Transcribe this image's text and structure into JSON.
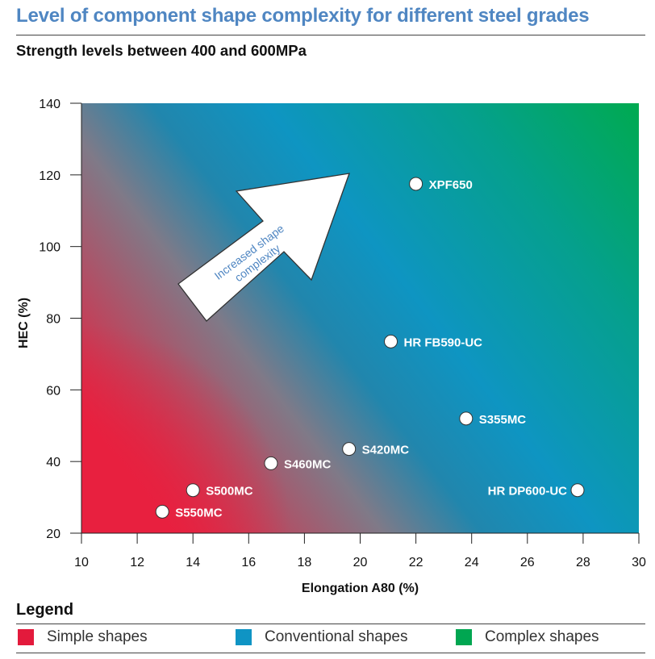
{
  "title": "Level of component shape complexity for different steel grades",
  "subtitle": "Strength levels between 400 and 600MPa",
  "chart_data": {
    "type": "scatter",
    "xlabel": "Elongation A80 (%)",
    "ylabel": "HEC (%)",
    "xlim": [
      10,
      30
    ],
    "ylim": [
      20,
      140
    ],
    "xticks": [
      10,
      12,
      14,
      16,
      18,
      20,
      22,
      24,
      26,
      28,
      30
    ],
    "yticks": [
      20,
      40,
      60,
      80,
      100,
      120,
      140
    ],
    "grid": false,
    "points": [
      {
        "label": "XPF650",
        "x": 22.0,
        "y": 117.5,
        "label_side": "right"
      },
      {
        "label": "HR FB590-UC",
        "x": 21.1,
        "y": 73.5,
        "label_side": "right"
      },
      {
        "label": "S355MC",
        "x": 23.8,
        "y": 52,
        "label_side": "right"
      },
      {
        "label": "S420MC",
        "x": 19.6,
        "y": 43.5,
        "label_side": "right"
      },
      {
        "label": "S460MC",
        "x": 16.8,
        "y": 39.5,
        "label_side": "right"
      },
      {
        "label": "S500MC",
        "x": 14.0,
        "y": 32,
        "label_side": "right"
      },
      {
        "label": "S550MC",
        "x": 12.9,
        "y": 26,
        "label_side": "right"
      },
      {
        "label": "HR DP600-UC",
        "x": 27.8,
        "y": 32,
        "label_side": "left"
      }
    ],
    "annotation": "Increased shape complexity",
    "background_gradient": {
      "simple": "#e8203f",
      "conventional": "#0e95c2",
      "complex": "#00aa50"
    }
  },
  "legend": {
    "title": "Legend",
    "items": [
      {
        "label": "Simple shapes",
        "color": "#e31a3c"
      },
      {
        "label": "Conventional shapes",
        "color": "#0f94c4"
      },
      {
        "label": "Complex shapes",
        "color": "#00a651"
      }
    ]
  }
}
